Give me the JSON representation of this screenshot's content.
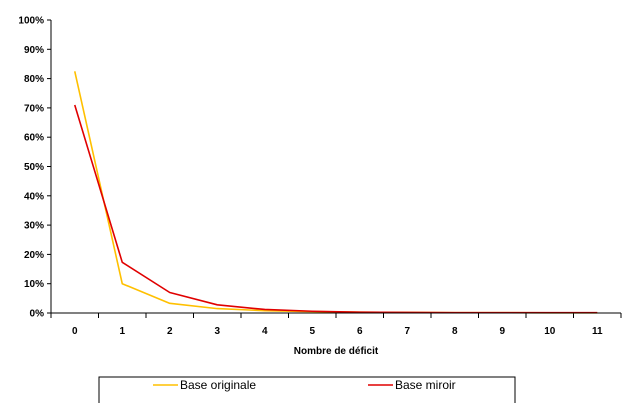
{
  "chart_data": {
    "type": "line",
    "title": "",
    "xlabel": "Nombre de déficit",
    "ylabel": "",
    "x": [
      0,
      1,
      2,
      3,
      4,
      5,
      6,
      7,
      8,
      9,
      10,
      11
    ],
    "xticklabels": [
      "0",
      "1",
      "2",
      "3",
      "4",
      "5",
      "6",
      "7",
      "8",
      "9",
      "10",
      "11"
    ],
    "yticklabels": [
      "0%",
      "10%",
      "20%",
      "30%",
      "40%",
      "50%",
      "60%",
      "70%",
      "80%",
      "90%",
      "100%"
    ],
    "ylim": [
      0,
      100
    ],
    "y_unit": "%",
    "grid": false,
    "legend_position": "bottom",
    "series": [
      {
        "name": "Base originale",
        "color": "#ffc000",
        "values": [
          82.5,
          10.0,
          3.3,
          1.5,
          0.8,
          0.5,
          0.3,
          0.2,
          0.1,
          0.1,
          0.05,
          0.05
        ]
      },
      {
        "name": "Base miroir",
        "color": "#e00000",
        "values": [
          71.0,
          17.3,
          7.0,
          2.8,
          1.2,
          0.6,
          0.3,
          0.2,
          0.1,
          0.1,
          0.1,
          0.1
        ]
      }
    ]
  }
}
